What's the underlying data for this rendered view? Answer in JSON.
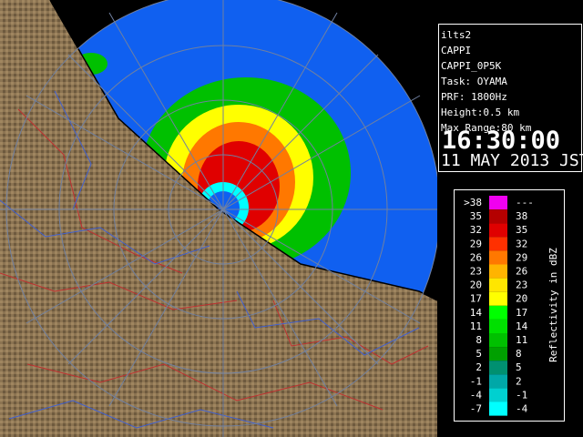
{
  "panel": {
    "lines": [
      "ilts2",
      "CAPPI",
      "CAPPI_0P5K",
      "Task: OYAMA",
      "PRF: 1800Hz",
      "Height:0.5 km",
      "Max Range:80 km"
    ],
    "time": "16:30:00",
    "date": "11 MAY 2013 JST"
  },
  "legend": {
    "title": "Reflectivity in dBZ",
    "rows": [
      {
        "low": ">38",
        "high": "---",
        "color": "#f000f0"
      },
      {
        "low": "35",
        "high": "38",
        "color": "#b40000"
      },
      {
        "low": "32",
        "high": "35",
        "color": "#e00000"
      },
      {
        "low": "29",
        "high": "32",
        "color": "#ff3000"
      },
      {
        "low": "26",
        "high": "29",
        "color": "#ff7800"
      },
      {
        "low": "23",
        "high": "26",
        "color": "#ffb400"
      },
      {
        "low": "20",
        "high": "23",
        "color": "#ffe600"
      },
      {
        "low": "17",
        "high": "20",
        "color": "#ffff00"
      },
      {
        "low": "14",
        "high": "17",
        "color": "#00ff00"
      },
      {
        "low": "11",
        "high": "14",
        "color": "#00e000"
      },
      {
        "low": "8",
        "high": "11",
        "color": "#00c000"
      },
      {
        "low": "5",
        "high": "8",
        "color": "#00a000"
      },
      {
        "low": "2",
        "high": "5",
        "color": "#009070"
      },
      {
        "low": "-1",
        "high": "2",
        "color": "#00a8a8"
      },
      {
        "low": "-4",
        "high": "-1",
        "color": "#00d0d0"
      },
      {
        "low": "-7",
        "high": "-4",
        "color": "#00ffff"
      }
    ]
  }
}
